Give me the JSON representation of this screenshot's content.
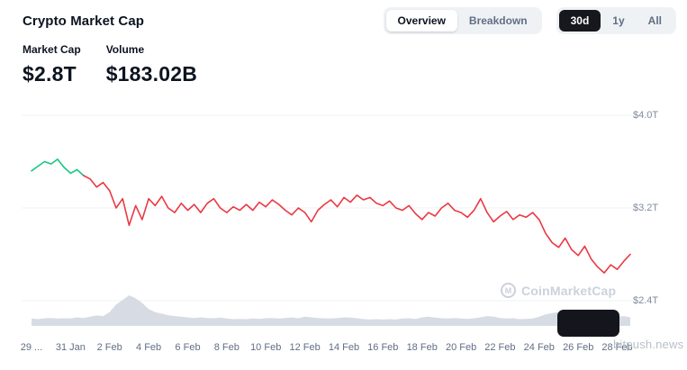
{
  "header": {
    "title": "Crypto Market Cap",
    "view_toggle": [
      {
        "label": "Overview",
        "active": true
      },
      {
        "label": "Breakdown",
        "active": false
      }
    ],
    "range_toggle": [
      {
        "label": "30d",
        "active": true
      },
      {
        "label": "1y",
        "active": false
      },
      {
        "label": "All",
        "active": false
      }
    ]
  },
  "stats": [
    {
      "label": "Market Cap",
      "value": "$2.8T"
    },
    {
      "label": "Volume",
      "value": "$183.02B"
    }
  ],
  "watermark": {
    "icon": "M",
    "brand": "CoinMarketCap",
    "site": "bitpush.news"
  },
  "chart_data": {
    "type": "line",
    "title": "Crypto Market Cap",
    "xlabel": "",
    "ylabel": "",
    "unit": "trillions USD",
    "x_range": [
      "29 Jan",
      "28 Feb"
    ],
    "ylim_trillions": [
      2.3,
      4.1
    ],
    "grid": true,
    "legend": "none",
    "y_tick_labels": [
      "$4.0T",
      "$3.2T",
      "$2.4T"
    ],
    "y_ticks_trillions": [
      4.0,
      3.2,
      2.4
    ],
    "x_tick_labels": [
      "29 ...",
      "31 Jan",
      "2 Feb",
      "4 Feb",
      "6 Feb",
      "8 Feb",
      "10 Feb",
      "12 Feb",
      "14 Feb",
      "16 Feb",
      "18 Feb",
      "20 Feb",
      "22 Feb",
      "24 Feb",
      "26 Feb",
      "28 Feb"
    ],
    "green_end_index": 8,
    "colors": {
      "up": "#16c784",
      "down": "#ea3943",
      "volume": "#d7dce4",
      "grid": "#eff2f5"
    },
    "series": [
      {
        "name": "Market Cap",
        "values": [
          3.52,
          3.56,
          3.6,
          3.58,
          3.62,
          3.55,
          3.5,
          3.53,
          3.48,
          3.45,
          3.38,
          3.42,
          3.35,
          3.2,
          3.28,
          3.05,
          3.22,
          3.1,
          3.28,
          3.22,
          3.3,
          3.2,
          3.16,
          3.24,
          3.18,
          3.23,
          3.16,
          3.24,
          3.28,
          3.2,
          3.16,
          3.21,
          3.18,
          3.23,
          3.18,
          3.25,
          3.21,
          3.27,
          3.23,
          3.18,
          3.14,
          3.2,
          3.16,
          3.08,
          3.18,
          3.23,
          3.27,
          3.21,
          3.29,
          3.25,
          3.31,
          3.27,
          3.29,
          3.24,
          3.22,
          3.26,
          3.2,
          3.18,
          3.22,
          3.15,
          3.1,
          3.16,
          3.13,
          3.2,
          3.24,
          3.18,
          3.16,
          3.12,
          3.18,
          3.28,
          3.16,
          3.08,
          3.13,
          3.17,
          3.1,
          3.14,
          3.12,
          3.16,
          3.1,
          2.98,
          2.9,
          2.86,
          2.94,
          2.84,
          2.79,
          2.87,
          2.76,
          2.69,
          2.64,
          2.71,
          2.67,
          2.74,
          2.8
        ]
      }
    ],
    "volume_series": {
      "name": "Volume",
      "values": [
        0.24,
        0.22,
        0.25,
        0.26,
        0.24,
        0.25,
        0.24,
        0.28,
        0.26,
        0.3,
        0.34,
        0.32,
        0.45,
        0.7,
        0.85,
        1.0,
        0.9,
        0.75,
        0.55,
        0.45,
        0.4,
        0.35,
        0.32,
        0.3,
        0.28,
        0.26,
        0.28,
        0.26,
        0.25,
        0.27,
        0.24,
        0.22,
        0.23,
        0.22,
        0.24,
        0.23,
        0.25,
        0.26,
        0.24,
        0.26,
        0.28,
        0.25,
        0.3,
        0.28,
        0.26,
        0.25,
        0.24,
        0.26,
        0.28,
        0.27,
        0.25,
        0.22,
        0.21,
        0.22,
        0.21,
        0.22,
        0.21,
        0.24,
        0.25,
        0.23,
        0.28,
        0.3,
        0.27,
        0.25,
        0.24,
        0.26,
        0.24,
        0.23,
        0.25,
        0.28,
        0.32,
        0.3,
        0.26,
        0.24,
        0.25,
        0.22,
        0.23,
        0.24,
        0.3,
        0.38,
        0.42,
        0.45,
        0.4,
        0.38,
        0.35,
        0.38,
        0.36,
        0.4,
        0.36,
        0.34,
        0.3,
        0.32,
        0.28
      ]
    }
  }
}
